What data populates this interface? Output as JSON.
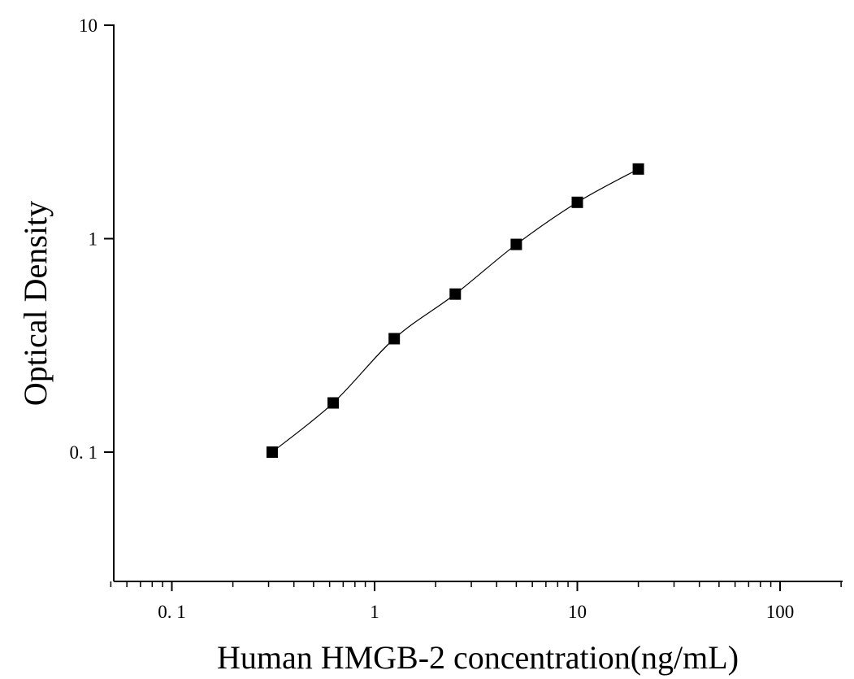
{
  "chart_data": {
    "type": "scatter",
    "title": "",
    "xlabel": "Human HMGB-2 concentration(ng/mL)",
    "ylabel": "Optical Density",
    "x_scale": "log",
    "y_scale": "log",
    "xlim": [
      0.05,
      200
    ],
    "ylim": [
      0.025,
      10
    ],
    "x_ticks": [
      {
        "value": 0.1,
        "label": "0. 1"
      },
      {
        "value": 1,
        "label": "1"
      },
      {
        "value": 10,
        "label": "10"
      },
      {
        "value": 100,
        "label": "100"
      }
    ],
    "y_ticks": [
      {
        "value": 0.1,
        "label": "0. 1"
      },
      {
        "value": 1,
        "label": "1"
      },
      {
        "value": 10,
        "label": "10"
      }
    ],
    "grid": false,
    "legend": "none",
    "series": [
      {
        "marker": "square",
        "color": "#000000",
        "points": [
          {
            "x": 0.3125,
            "y": 0.1
          },
          {
            "x": 0.625,
            "y": 0.17
          },
          {
            "x": 1.25,
            "y": 0.34
          },
          {
            "x": 2.5,
            "y": 0.55
          },
          {
            "x": 5,
            "y": 0.94
          },
          {
            "x": 10,
            "y": 1.48
          },
          {
            "x": 20,
            "y": 2.12
          }
        ]
      }
    ],
    "fit_curve": true
  }
}
